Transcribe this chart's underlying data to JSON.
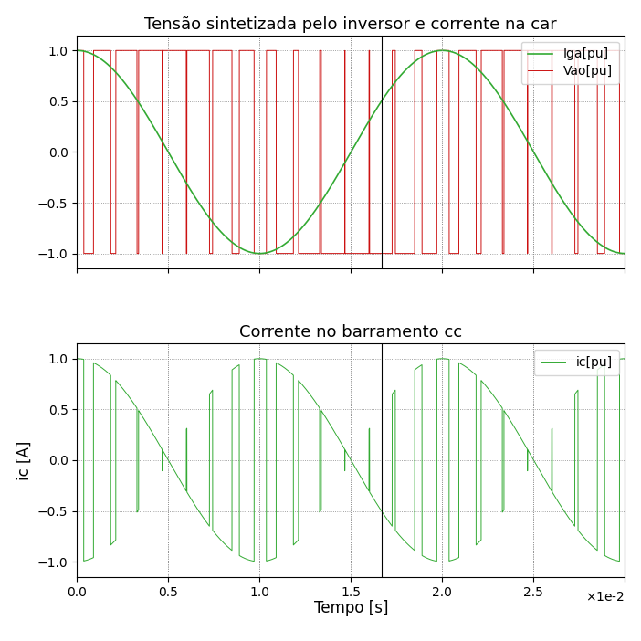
{
  "title1": "Tensão sintetizada pelo inversor e corrente na car",
  "title2": "Corrente no barramento cc",
  "xlabel": "Tempo [s]",
  "ylabel1": "",
  "ylabel2": "ic [A]",
  "legend1_labels": [
    "Iga[pu]",
    "Vao[pu]"
  ],
  "legend2_labels": [
    "ic[pu]"
  ],
  "color_green": "#33AA33",
  "color_red": "#CC1111",
  "xlim": [
    0,
    0.03
  ],
  "ylim1": [
    -1.15,
    1.15
  ],
  "ylim2": [
    -1.15,
    1.15
  ],
  "xticks": [
    0.0,
    0.005,
    0.01,
    0.015,
    0.02,
    0.025,
    0.03
  ],
  "xtick_labels": [
    "0.0",
    "0.5",
    "1.0",
    "1.5",
    "2.0",
    "2.5",
    ""
  ],
  "yticks1": [
    -1.0,
    -0.5,
    0.0,
    0.5,
    1.0
  ],
  "yticks2": [
    -1.0,
    -0.5,
    0.0,
    0.5,
    1.0
  ],
  "fundamental_freq": 50,
  "switching_freq": 750,
  "modulation_index": 1.0,
  "figsize": [
    7.02,
    7.02
  ],
  "dpi": 100,
  "vline_positions": [
    0.005,
    0.01,
    0.015,
    0.02,
    0.025
  ],
  "special_vline": 0.0167
}
